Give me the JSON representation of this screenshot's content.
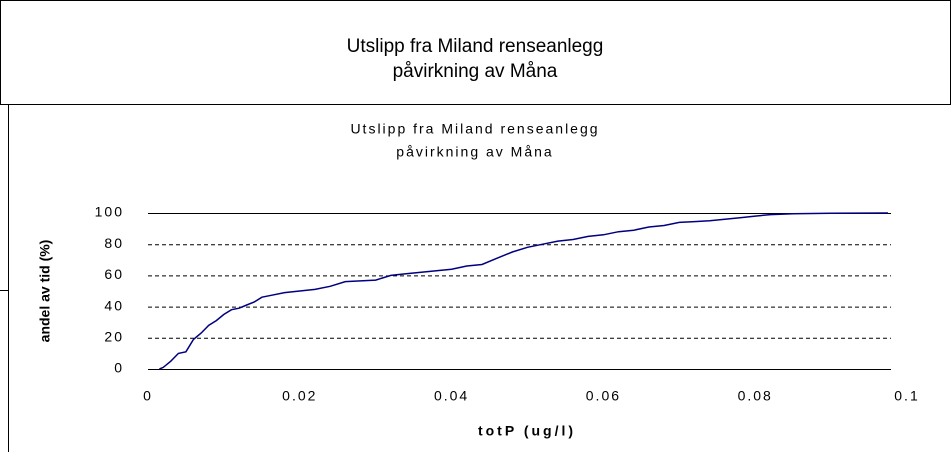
{
  "header": {
    "title": [
      "Utslipp fra Miland renseanlegg",
      "påvirkning av Måna"
    ]
  },
  "chart_data": {
    "type": "line",
    "title": [
      "Utslipp fra Miland renseanlegg",
      "påvirkning av Måna"
    ],
    "x_label": "totP (ug/l)",
    "y_label": "andel av tid (%)",
    "x": [
      0.0015,
      0.002,
      0.003,
      0.004,
      0.005,
      0.006,
      0.007,
      0.008,
      0.009,
      0.01,
      0.011,
      0.012,
      0.013,
      0.014,
      0.015,
      0.016,
      0.018,
      0.02,
      0.022,
      0.024,
      0.026,
      0.028,
      0.03,
      0.032,
      0.034,
      0.036,
      0.038,
      0.04,
      0.042,
      0.044,
      0.046,
      0.048,
      0.05,
      0.052,
      0.054,
      0.056,
      0.058,
      0.06,
      0.062,
      0.064,
      0.066,
      0.068,
      0.07,
      0.072,
      0.074,
      0.076,
      0.078,
      0.08,
      0.082,
      0.085,
      0.09,
      0.0975
    ],
    "series": [
      {
        "color": "#000080",
        "values": [
          0,
          1,
          5,
          10,
          11,
          19,
          23,
          28,
          31,
          35,
          38,
          39,
          41,
          43,
          46,
          47,
          49,
          50,
          51,
          53,
          56,
          56.5,
          57,
          60,
          61,
          62,
          63,
          64,
          66,
          67,
          71,
          75,
          78,
          80,
          82,
          83,
          85,
          86,
          88,
          89,
          91,
          92,
          94,
          94.5,
          95,
          96,
          97,
          98,
          99,
          99.5,
          99.8,
          100
        ]
      }
    ],
    "xlim": [
      0,
      0.1
    ],
    "xticks": [
      0,
      0.02,
      0.04,
      0.06,
      0.08,
      0.1
    ],
    "ylim": [
      0,
      100
    ],
    "yticks": [
      0,
      20,
      40,
      60,
      80,
      100
    ],
    "grid": true
  }
}
